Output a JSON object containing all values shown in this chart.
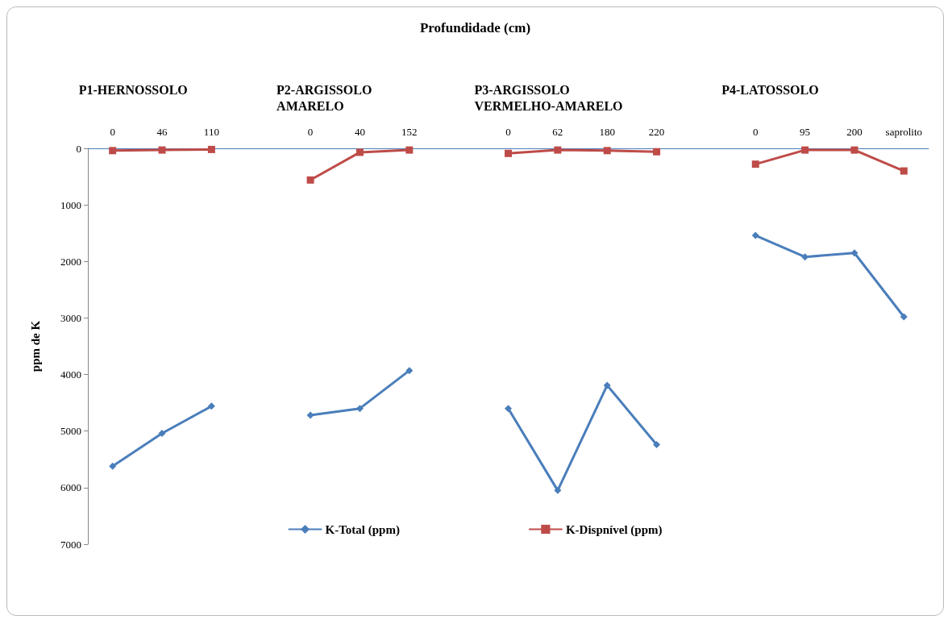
{
  "chart_data": {
    "type": "line",
    "title": "Profundidade (cm)",
    "ylabel": "ppm de K",
    "categories": [
      "0",
      "46",
      "110",
      null,
      "0",
      "40",
      "152",
      null,
      "0",
      "62",
      "180",
      "220",
      null,
      "0",
      "95",
      "200",
      "saprolito"
    ],
    "series": [
      {
        "name": "K-Total (ppm)",
        "color": "#4a7ebb",
        "marker": "diamond",
        "values": [
          5620,
          5040,
          4560,
          null,
          4720,
          4600,
          3930,
          null,
          4600,
          6050,
          4190,
          5240,
          null,
          1540,
          1920,
          1850,
          2980
        ]
      },
      {
        "name": "K-Dispnível (ppm)",
        "color": "#be4b48",
        "marker": "square",
        "values": [
          40,
          30,
          20,
          null,
          560,
          70,
          30,
          null,
          90,
          30,
          40,
          60,
          null,
          280,
          30,
          30,
          400
        ]
      }
    ],
    "annotations": [
      "P1-HERNOSSOLO",
      "P2-ARGISSOLO\nAMARELO",
      "P3-ARGISSOLO\nVERMELHO-AMARELO",
      "P4-LATOSSOLO"
    ],
    "ylim": [
      7000,
      0
    ],
    "yticks": [
      0,
      1000,
      2000,
      3000,
      4000,
      5000,
      6000,
      7000
    ],
    "grid": false,
    "legend": "bottom",
    "line_style": "solid"
  }
}
